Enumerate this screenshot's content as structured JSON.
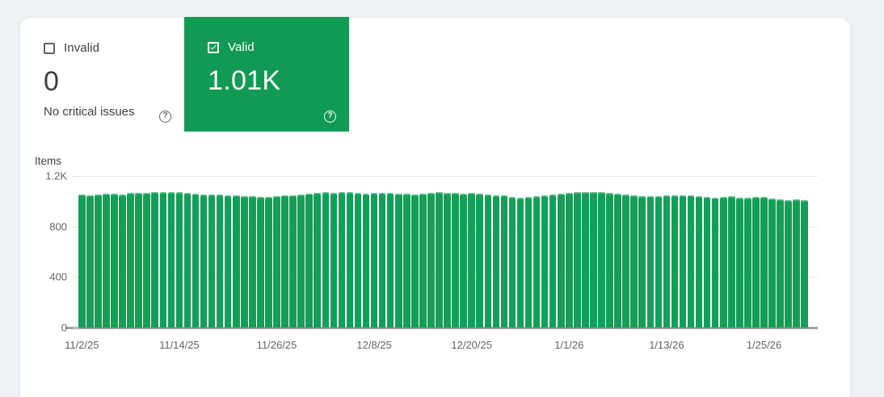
{
  "cards": {
    "invalid": {
      "label": "Invalid",
      "value": "0",
      "subtitle": "No critical issues",
      "checked": false,
      "help_glyph": "?"
    },
    "valid": {
      "label": "Valid",
      "value": "1.01K",
      "checked": true,
      "help_glyph": "?",
      "background_color": "#119a53"
    }
  },
  "chart_data": {
    "type": "bar",
    "title": "Items",
    "ylabel": "Items",
    "ylim": [
      0,
      1200
    ],
    "grid": true,
    "bar_color": "#149e58",
    "num_bars": 90,
    "yticks": [
      {
        "label": "1.2K",
        "value": 1200
      },
      {
        "label": "800",
        "value": 800
      },
      {
        "label": "400",
        "value": 400
      },
      {
        "label": "0",
        "value": 0
      }
    ],
    "xticks": [
      {
        "label": "11/2/25",
        "index": 0
      },
      {
        "label": "11/14/25",
        "index": 12
      },
      {
        "label": "11/26/25",
        "index": 24
      },
      {
        "label": "12/8/25",
        "index": 36
      },
      {
        "label": "12/20/25",
        "index": 48
      },
      {
        "label": "1/1/26",
        "index": 60
      },
      {
        "label": "1/13/26",
        "index": 72
      },
      {
        "label": "1/25/26",
        "index": 84
      }
    ],
    "values": [
      1055,
      1050,
      1052,
      1060,
      1062,
      1055,
      1063,
      1068,
      1065,
      1072,
      1075,
      1072,
      1075,
      1068,
      1060,
      1055,
      1052,
      1055,
      1050,
      1045,
      1040,
      1038,
      1032,
      1036,
      1040,
      1045,
      1050,
      1055,
      1060,
      1065,
      1070,
      1068,
      1074,
      1072,
      1065,
      1060,
      1063,
      1068,
      1065,
      1060,
      1058,
      1055,
      1060,
      1066,
      1070,
      1065,
      1068,
      1062,
      1066,
      1060,
      1055,
      1050,
      1045,
      1035,
      1030,
      1034,
      1040,
      1048,
      1055,
      1060,
      1068,
      1072,
      1075,
      1073,
      1070,
      1063,
      1058,
      1052,
      1048,
      1042,
      1038,
      1042,
      1045,
      1048,
      1050,
      1045,
      1040,
      1032,
      1028,
      1035,
      1038,
      1030,
      1025,
      1032,
      1035,
      1022,
      1018,
      1008,
      1012,
      1010
    ]
  },
  "colors": {
    "page_background": "#eef1f5",
    "panel_background": "#ffffff",
    "valid_green": "#119a53",
    "bar_green": "#149e58",
    "axis_text": "#5f6368",
    "baseline": "#9aa0a6"
  }
}
